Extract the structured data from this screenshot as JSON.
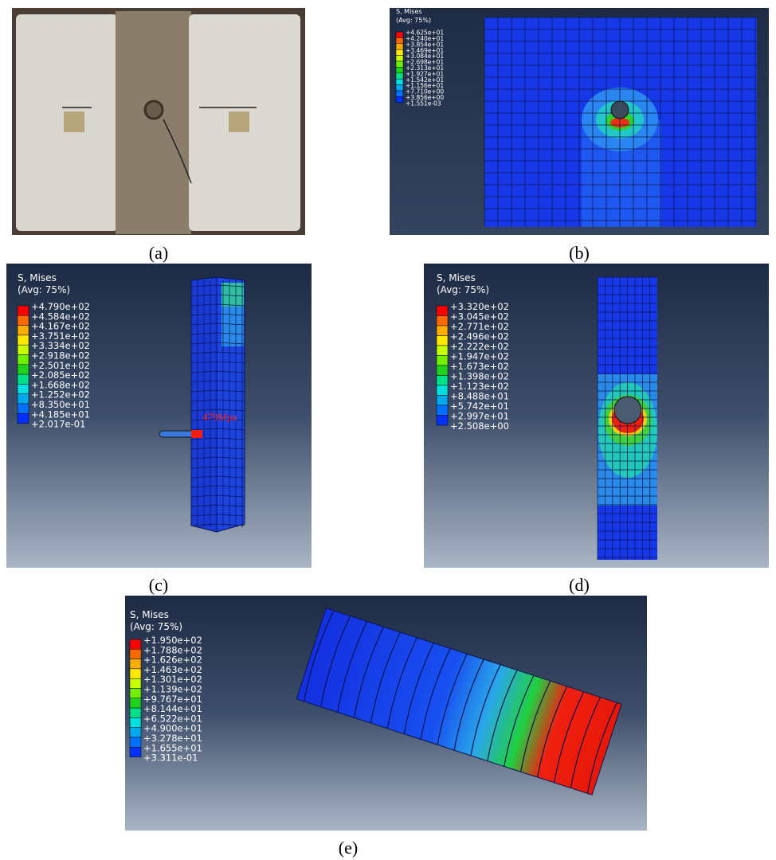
{
  "panels": [
    {
      "label": "(a)"
    },
    {
      "label": "(b)",
      "legend": {
        "title": "S, Mises",
        "subtitle": "(Avg: 75%)",
        "values": [
          "+4.625e+01",
          "+4.240e+01",
          "+3.854e+01",
          "+3.469e+01",
          "+3.084e+01",
          "+2.698e+01",
          "+2.313e+01",
          "+1.927e+01",
          "+1.542e+01",
          "+1.156e+01",
          "+7.710e+00",
          "+3.856e+00",
          "+1.551e-03"
        ]
      }
    },
    {
      "label": "(c)",
      "annotation": "479Mpa",
      "legend": {
        "title": "S, Mises",
        "subtitle": "(Avg: 75%)",
        "values": [
          "+4.790e+02",
          "+4.584e+02",
          "+4.167e+02",
          "+3.751e+02",
          "+3.334e+02",
          "+2.918e+02",
          "+2.501e+02",
          "+2.085e+02",
          "+1.668e+02",
          "+1.252e+02",
          "+8.350e+01",
          "+4.185e+01",
          "+2.017e-01"
        ]
      }
    },
    {
      "label": "(d)",
      "legend": {
        "title": "S, Mises",
        "subtitle": "(Avg: 75%)",
        "values": [
          "+3.320e+02",
          "+3.045e+02",
          "+2.771e+02",
          "+2.496e+02",
          "+2.222e+02",
          "+1.947e+02",
          "+1.673e+02",
          "+1.398e+02",
          "+1.123e+02",
          "+8.488e+01",
          "+5.742e+01",
          "+2.997e+01",
          "+2.508e+00"
        ]
      }
    },
    {
      "label": "(e)",
      "legend": {
        "title": "S, Mises",
        "subtitle": "(Avg: 75%)",
        "values": [
          "+1.950e+02",
          "+1.788e+02",
          "+1.626e+02",
          "+1.463e+02",
          "+1.301e+02",
          "+1.139e+02",
          "+9.767e+01",
          "+8.144e+01",
          "+6.522e+01",
          "+4.900e+01",
          "+3.278e+01",
          "+1.655e+01",
          "+3.311e-01"
        ]
      }
    }
  ]
}
